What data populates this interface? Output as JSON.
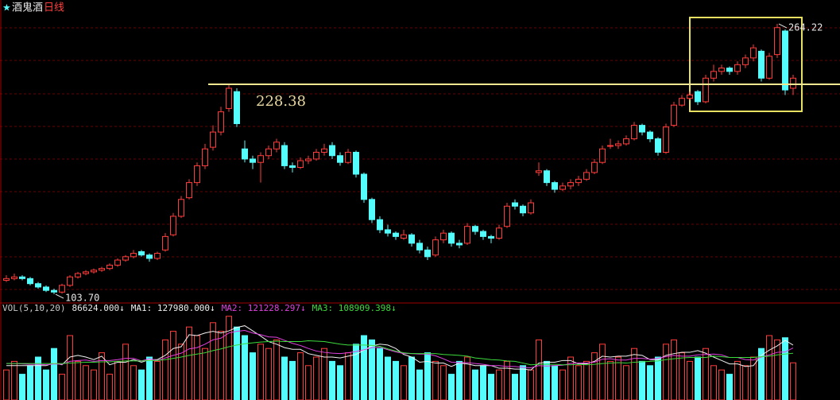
{
  "chart_data": [
    {
      "type": "candlestick",
      "title": "酒鬼酒",
      "subtitle": "日线",
      "ylim": [
        99,
        278.4
      ],
      "up_color": "#ff3c3c",
      "down_color": "#54fcfc",
      "candles": [
        [
          112,
          115,
          111,
          113
        ],
        [
          113,
          116,
          112,
          114
        ],
        [
          114,
          115,
          112,
          113
        ],
        [
          113,
          114,
          109,
          110
        ],
        [
          110,
          111,
          107,
          108
        ],
        [
          108,
          109,
          105,
          106
        ],
        [
          106,
          107,
          103.7,
          105
        ],
        [
          105,
          110,
          104,
          109
        ],
        [
          109,
          115,
          108,
          114
        ],
        [
          114,
          117,
          113,
          116
        ],
        [
          116,
          118,
          115,
          117
        ],
        [
          117,
          119,
          116,
          118
        ],
        [
          118,
          120,
          117,
          119
        ],
        [
          119,
          122,
          118,
          121
        ],
        [
          121,
          125,
          120,
          124
        ],
        [
          124,
          127,
          123,
          126
        ],
        [
          126,
          130,
          125,
          128
        ],
        [
          129,
          130,
          126,
          127
        ],
        [
          127,
          128,
          123,
          125
        ],
        [
          125,
          129,
          124,
          128
        ],
        [
          130,
          140,
          129,
          138
        ],
        [
          139,
          152,
          138,
          150
        ],
        [
          150,
          162,
          149,
          160
        ],
        [
          161,
          172,
          160,
          170
        ],
        [
          170,
          182,
          168,
          180
        ],
        [
          180,
          193,
          178,
          190
        ],
        [
          191,
          204,
          189,
          200
        ],
        [
          200,
          215,
          198,
          212
        ],
        [
          214,
          228.38,
          212,
          226
        ],
        [
          224,
          226,
          203,
          205
        ],
        [
          190,
          195,
          182,
          184
        ],
        [
          184,
          186,
          178,
          182
        ],
        [
          182,
          188,
          170,
          186
        ],
        [
          186,
          192,
          184,
          190
        ],
        [
          190,
          196,
          188,
          194
        ],
        [
          192,
          194,
          178,
          180
        ],
        [
          180,
          182,
          176,
          179
        ],
        [
          179,
          185,
          178,
          183
        ],
        [
          183,
          186,
          181,
          184
        ],
        [
          184,
          190,
          183,
          188
        ],
        [
          188,
          193,
          186,
          190
        ],
        [
          192,
          194,
          184,
          186
        ],
        [
          186,
          188,
          180,
          182
        ],
        [
          182,
          190,
          181,
          188
        ],
        [
          188,
          189,
          173,
          175
        ],
        [
          175,
          176,
          158,
          160
        ],
        [
          160,
          161,
          146,
          148
        ],
        [
          148,
          150,
          140,
          142
        ],
        [
          142,
          145,
          138,
          140
        ],
        [
          140,
          141,
          136,
          138
        ],
        [
          137,
          142,
          136,
          139
        ],
        [
          139,
          140,
          132,
          134
        ],
        [
          134,
          136,
          128,
          130
        ],
        [
          130,
          132,
          124,
          126
        ],
        [
          127,
          138,
          126,
          136
        ],
        [
          136,
          142,
          134,
          140
        ],
        [
          140,
          141,
          132,
          134
        ],
        [
          134,
          136,
          131,
          133
        ],
        [
          134,
          146,
          133,
          144
        ],
        [
          144,
          145,
          139,
          141
        ],
        [
          141,
          142,
          136,
          138
        ],
        [
          138,
          139,
          134,
          137
        ],
        [
          137,
          145,
          136,
          143
        ],
        [
          144,
          158,
          143,
          156
        ],
        [
          158,
          160,
          154,
          156
        ],
        [
          156,
          157,
          150,
          152
        ],
        [
          152,
          160,
          151,
          158
        ],
        [
          176,
          182,
          174,
          177
        ],
        [
          177,
          178,
          168,
          170
        ],
        [
          170,
          171,
          164,
          166
        ],
        [
          166,
          170,
          165,
          168
        ],
        [
          168,
          172,
          166,
          170
        ],
        [
          170,
          174,
          168,
          172
        ],
        [
          172,
          178,
          171,
          176
        ],
        [
          176,
          184,
          175,
          182
        ],
        [
          182,
          192,
          181,
          190
        ],
        [
          192,
          196,
          190,
          192
        ],
        [
          192,
          195,
          190,
          193
        ],
        [
          193,
          198,
          192,
          196
        ],
        [
          196,
          206,
          195,
          204
        ],
        [
          204,
          205,
          198,
          200
        ],
        [
          200,
          201,
          194,
          196
        ],
        [
          196,
          197,
          186,
          188
        ],
        [
          188,
          205,
          187,
          203
        ],
        [
          204,
          218,
          203,
          216
        ],
        [
          216,
          222,
          215,
          220
        ],
        [
          220,
          224,
          219,
          222
        ],
        [
          224,
          225,
          216,
          218
        ],
        [
          218,
          234,
          217,
          232
        ],
        [
          232,
          240,
          230,
          236
        ],
        [
          236,
          240,
          234,
          238
        ],
        [
          238,
          239,
          234,
          236
        ],
        [
          236,
          242,
          234,
          240
        ],
        [
          240,
          246,
          238,
          244
        ],
        [
          244,
          252,
          242,
          250
        ],
        [
          248,
          249,
          230,
          232
        ],
        [
          232,
          247,
          231,
          245
        ],
        [
          246,
          264.22,
          244,
          262
        ],
        [
          260,
          261,
          222,
          225
        ],
        [
          226,
          234,
          222,
          232
        ]
      ],
      "annotations": [
        {
          "value": 264.22,
          "label": "264.22"
        },
        {
          "value": 103.7,
          "label": "103.70"
        },
        {
          "value": 228.38,
          "label": "228.38"
        }
      ]
    },
    {
      "type": "bar",
      "title": "VOL(5,10,20)",
      "ylim": [
        0,
        200000
      ],
      "values": [
        70000,
        90000,
        60000,
        80000,
        100000,
        70000,
        120000,
        60000,
        150000,
        90000,
        80000,
        70000,
        110000,
        60000,
        90000,
        130000,
        80000,
        70000,
        100000,
        90000,
        140000,
        160000,
        130000,
        170000,
        150000,
        120000,
        180000,
        160000,
        195000,
        170000,
        150000,
        110000,
        130000,
        120000,
        140000,
        100000,
        90000,
        110000,
        80000,
        100000,
        120000,
        90000,
        80000,
        110000,
        130000,
        150000,
        140000,
        120000,
        100000,
        90000,
        80000,
        100000,
        70000,
        110000,
        90000,
        80000,
        60000,
        90000,
        100000,
        70000,
        80000,
        60000,
        70000,
        90000,
        60000,
        80000,
        70000,
        140000,
        90000,
        80000,
        70000,
        100000,
        80000,
        90000,
        110000,
        130000,
        90000,
        100000,
        80000,
        120000,
        90000,
        80000,
        100000,
        130000,
        140000,
        110000,
        90000,
        100000,
        120000,
        80000,
        70000,
        60000,
        90000,
        80000,
        100000,
        120000,
        150000,
        140000,
        145000,
        86624
      ],
      "value_labels": [
        null,
        null,
        null,
        null,
        null,
        null,
        null,
        null,
        null,
        null,
        null,
        null,
        null,
        null,
        null,
        null,
        null,
        null,
        null,
        null,
        null,
        null,
        null,
        null,
        null,
        null,
        null,
        null,
        null,
        null,
        null,
        null,
        null,
        null,
        null,
        null,
        null,
        null,
        null,
        null,
        null,
        null,
        null,
        null,
        null,
        null,
        null,
        null,
        null,
        null,
        null,
        null,
        null,
        null,
        null,
        null,
        null,
        null,
        null,
        null,
        null,
        null,
        null,
        null,
        null,
        null,
        null,
        null,
        null,
        null,
        null,
        null,
        null,
        null,
        null,
        null,
        null,
        null,
        null,
        null,
        null,
        null,
        null,
        null,
        null,
        null,
        null,
        null,
        null,
        null,
        null,
        null,
        null,
        null,
        null,
        null,
        null,
        null,
        null,
        "86624.000↓"
      ],
      "series": [
        {
          "name": "MA1: 127980.000↓",
          "color": "#f0f0f0",
          "values": [
            80000,
            80000,
            80000,
            80000,
            80000,
            80000,
            86000,
            82000,
            100000,
            104000,
            100000,
            94000,
            102000,
            82000,
            88000,
            88000,
            94000,
            88000,
            94000,
            94000,
            104000,
            120000,
            124000,
            152000,
            150000,
            156000,
            160000,
            156000,
            161000,
            169000,
            173000,
            161000,
            149000,
            136000,
            130000,
            122000,
            118000,
            118000,
            108000,
            104000,
            100000,
            100000,
            98000,
            102000,
            106000,
            116000,
            126000,
            130000,
            128000,
            120000,
            106000,
            100000,
            88000,
            90000,
            86000,
            86000,
            78000,
            86000,
            84000,
            80000,
            80000,
            80000,
            74000,
            74000,
            72000,
            72000,
            70000,
            86000,
            88000,
            88000,
            92000,
            92000,
            84000,
            84000,
            90000,
            102000,
            100000,
            102000,
            102000,
            106000,
            104000,
            94000,
            94000,
            104000,
            108000,
            111000,
            111000,
            115000,
            109000,
            100000,
            92000,
            84000,
            84000,
            78000,
            80000,
            104000,
            116000,
            126000,
            139000,
            127980
          ]
        },
        {
          "name": "MA2: 121228.297↓",
          "color": "#e040e0",
          "values": [
            85000,
            85000,
            84000,
            83000,
            83000,
            82000,
            84000,
            83000,
            90000,
            92000,
            93000,
            90000,
            92000,
            92000,
            94000,
            97000,
            97000,
            91000,
            96000,
            92000,
            98000,
            104000,
            109000,
            119000,
            122000,
            130000,
            140000,
            144000,
            156000,
            160000,
            162000,
            156000,
            152000,
            147000,
            146000,
            139000,
            132000,
            127000,
            120000,
            114000,
            111000,
            109000,
            108000,
            110000,
            113000,
            117000,
            122000,
            123000,
            117000,
            112000,
            108000,
            108000,
            107000,
            107000,
            103000,
            96000,
            88000,
            87000,
            87000,
            85000,
            83000,
            80000,
            80000,
            78000,
            78000,
            76000,
            75000,
            80000,
            79000,
            80000,
            81000,
            85000,
            86000,
            86000,
            88000,
            95000,
            96000,
            93000,
            93000,
            97000,
            97000,
            95000,
            97000,
            101000,
            104000,
            102000,
            102000,
            105000,
            106000,
            107000,
            105000,
            99000,
            99000,
            94000,
            93000,
            100000,
            105000,
            111000,
            112000,
            121228.297
          ]
        },
        {
          "name": "MA3: 108909.398↓",
          "color": "#3cdc3c",
          "values": [
            85000,
            85000,
            85000,
            85000,
            85000,
            85000,
            85000,
            85000,
            86000,
            87000,
            88000,
            88000,
            89000,
            89000,
            90000,
            91000,
            91000,
            91000,
            92000,
            92000,
            94000,
            97000,
            100000,
            104000,
            107000,
            110000,
            115000,
            119000,
            124000,
            128000,
            131000,
            133000,
            135000,
            136000,
            137000,
            136000,
            136000,
            136000,
            138000,
            137000,
            136000,
            133000,
            130000,
            128000,
            128000,
            128000,
            127000,
            125000,
            119000,
            114000,
            110000,
            108000,
            108000,
            108000,
            108000,
            106000,
            105000,
            104000,
            102000,
            98000,
            96000,
            94000,
            93000,
            91000,
            90000,
            86000,
            82000,
            83000,
            83000,
            83000,
            82000,
            82000,
            83000,
            82000,
            83000,
            85000,
            86000,
            87000,
            86000,
            88000,
            89000,
            90000,
            91000,
            94000,
            96000,
            98000,
            99000,
            99000,
            99000,
            102000,
            101000,
            99000,
            99000,
            99000,
            99000,
            101000,
            102000,
            105000,
            107000,
            108909.398
          ]
        }
      ]
    }
  ]
}
